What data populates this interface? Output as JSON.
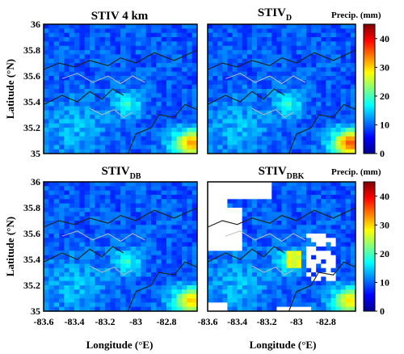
{
  "figure": {
    "xlabel": "Longitude (°E)",
    "ylabel": "Latitude (°N)",
    "colorbar_label": "Precip. (mm)"
  },
  "chart_data": [
    {
      "type": "heatmap",
      "title": "STIV 4 km",
      "title_main": "STIV 4 km",
      "title_sub": "",
      "xlim": [
        -83.6,
        -82.6
      ],
      "ylim": [
        35.0,
        36.0
      ],
      "xticks": [
        "-83.6",
        "-83.4",
        "-83.2",
        "-83",
        "-82.8"
      ],
      "yticks": [
        "35",
        "35.2",
        "35.4",
        "35.6",
        "35.8",
        "36"
      ],
      "clim": [
        0,
        45
      ],
      "colormap": "jet",
      "features": {
        "no_data_regions": false,
        "max_region": "south-east corner (yellow/red, ~25-35 mm)"
      }
    },
    {
      "type": "heatmap",
      "title": "STIVD",
      "title_main": "STIV",
      "title_sub": "D",
      "xlim": [
        -83.6,
        -82.6
      ],
      "ylim": [
        35.0,
        36.0
      ],
      "xticks": [
        "-83.6",
        "-83.4",
        "-83.2",
        "-83",
        "-82.8"
      ],
      "yticks": [
        "35",
        "35.2",
        "35.4",
        "35.6",
        "35.8",
        "36"
      ],
      "clim": [
        0,
        45
      ],
      "colormap": "jet",
      "colorbar_ticks": [
        "0",
        "10",
        "20",
        "30",
        "40"
      ],
      "features": {
        "no_data_regions": false,
        "max_region": "south-east corner (yellow/red, ~30-40 mm)"
      }
    },
    {
      "type": "heatmap",
      "title": "STIVDB",
      "title_main": "STIV",
      "title_sub": "DB",
      "xlim": [
        -83.6,
        -82.6
      ],
      "ylim": [
        35.0,
        36.0
      ],
      "xticks": [
        "-83.6",
        "-83.4",
        "-83.2",
        "-83",
        "-82.8"
      ],
      "yticks": [
        "35",
        "35.2",
        "35.4",
        "35.6",
        "35.8",
        "36"
      ],
      "clim": [
        0,
        45
      ],
      "colormap": "jet",
      "features": {
        "no_data_regions": false,
        "max_region": "south-east corner (yellow/orange, ~25-30 mm)"
      }
    },
    {
      "type": "heatmap",
      "title": "STIVDBK",
      "title_main": "STIV",
      "title_sub": "DBK",
      "xlim": [
        -83.6,
        -82.6
      ],
      "ylim": [
        35.0,
        36.0
      ],
      "xticks": [
        "-83.6",
        "-83.4",
        "-83.2",
        "-83",
        "-82.8"
      ],
      "yticks": [
        "35",
        "35.2",
        "35.4",
        "35.6",
        "35.8",
        "36"
      ],
      "clim": [
        0,
        45
      ],
      "colormap": "jet",
      "colorbar_ticks": [
        "0",
        "10",
        "20",
        "30",
        "40"
      ],
      "features": {
        "no_data_regions": true,
        "max_region": "center near -83.1, 35.4 (yellow, ~25 mm)"
      }
    }
  ]
}
